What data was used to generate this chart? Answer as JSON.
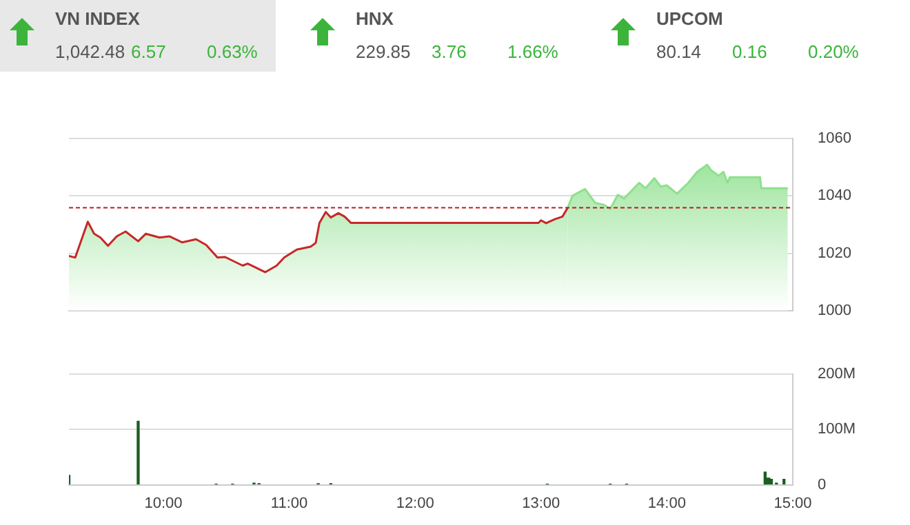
{
  "chart_data": [
    {
      "type": "other",
      "annotations": [
        "VN INDEX",
        "1,042.48",
        "6.57",
        "0.63%",
        "HNX",
        "229.85",
        "3.76",
        "1.66%",
        "UPCOM",
        "80.14",
        "0.16",
        "0.20%"
      ]
    },
    {
      "type": "area",
      "series": [
        {
          "color": "#c62828",
          "x": [
            9.25,
            9.3,
            9.4,
            9.45,
            9.5,
            9.56,
            9.63,
            9.7,
            9.8,
            9.86,
            9.97,
            10.05,
            10.15,
            10.26,
            10.34,
            10.43,
            10.49,
            10.63,
            10.67,
            10.81,
            10.9,
            10.96,
            11.06,
            11.17,
            11.21,
            11.24,
            11.29,
            11.33,
            11.39,
            11.44,
            11.49,
            12.98,
            13.0,
            13.04,
            13.11,
            13.17,
            13.21
          ],
          "values": [
            1019.1,
            1018.5,
            1031.0,
            1026.8,
            1025.5,
            1022.6,
            1025.9,
            1027.6,
            1024.2,
            1026.8,
            1025.5,
            1025.9,
            1023.8,
            1024.9,
            1022.9,
            1018.5,
            1018.7,
            1015.7,
            1016.4,
            1013.4,
            1015.7,
            1018.5,
            1021.3,
            1022.3,
            1023.6,
            1030.6,
            1034.4,
            1032.5,
            1034.0,
            1032.8,
            1030.6,
            1030.6,
            1031.5,
            1030.5,
            1031.9,
            1032.8,
            1035.7
          ]
        },
        {
          "color": "#8ee08e",
          "x": [
            13.21,
            13.25,
            13.35,
            13.43,
            13.5,
            13.55,
            13.61,
            13.66,
            13.78,
            13.83,
            13.9,
            13.95,
            14.0,
            14.08,
            14.17,
            14.24,
            14.32,
            14.35,
            14.41,
            14.45,
            14.48,
            14.5,
            14.74,
            14.75,
            14.96
          ],
          "values": [
            1035.7,
            1040.1,
            1042.4,
            1037.6,
            1036.9,
            1035.5,
            1040.4,
            1039.1,
            1044.6,
            1042.7,
            1046.2,
            1043.3,
            1043.7,
            1040.8,
            1044.6,
            1048.4,
            1050.9,
            1049.0,
            1047.1,
            1048.4,
            1044.6,
            1046.5,
            1046.5,
            1042.7,
            1042.7
          ]
        }
      ],
      "xlim": [
        9.25,
        15
      ],
      "ylim": [
        1000,
        1060
      ],
      "yticks": [
        1000,
        1020,
        1040,
        1060
      ],
      "grid": "y",
      "tick_labels": "y",
      "ref_lines": [
        {
          "axis": "y",
          "value": 1035.9,
          "color": "#b71c1c",
          "line_style": "dashed"
        }
      ]
    },
    {
      "type": "bar",
      "x": [
        9.25,
        9.8,
        10.42,
        10.55,
        10.72,
        10.76,
        11.23,
        11.33,
        13.05,
        13.55,
        13.68,
        14.78,
        14.79,
        14.81,
        14.83,
        14.87,
        14.93
      ],
      "series": [
        {
          "color": "#1b5e20",
          "values": [
            17,
            115,
            1,
            1,
            3,
            2,
            2,
            2,
            1,
            1,
            1,
            23,
            12,
            12,
            10,
            3,
            10
          ]
        }
      ],
      "xlim": [
        9.25,
        15
      ],
      "xticks": [
        {
          "value": 10,
          "label": "10:00"
        },
        {
          "value": 11,
          "label": "11:00"
        },
        {
          "value": 12,
          "label": "12:00"
        },
        {
          "value": 13,
          "label": "13:00"
        },
        {
          "value": 14,
          "label": "14:00"
        },
        {
          "value": 15,
          "label": "15:00"
        }
      ],
      "ylim": [
        0,
        200
      ],
      "yticks": [
        0,
        {
          "value": 100,
          "label": "100M"
        },
        {
          "value": 200,
          "label": "200M"
        }
      ],
      "grid": "y"
    }
  ]
}
